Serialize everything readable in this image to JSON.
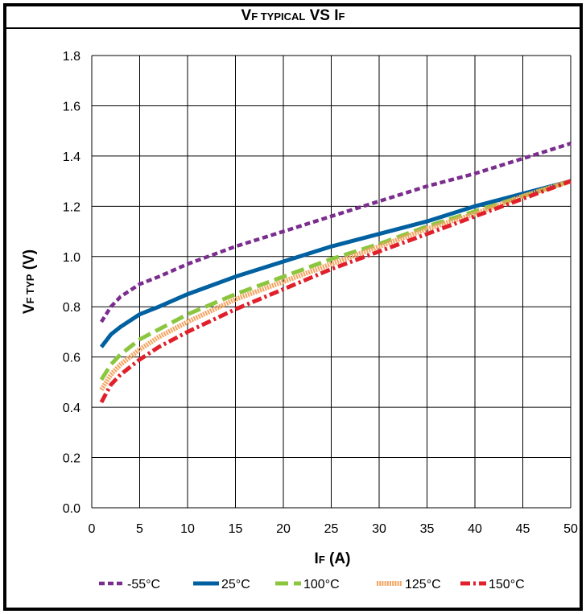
{
  "title": {
    "main_v": "V",
    "main_f": "F TYPICAL",
    "vs": " VS ",
    "main_i": "I",
    "main_if": "F"
  },
  "axes": {
    "xlabel_main": "I",
    "xlabel_sub": "F",
    "xlabel_unit": " (A)",
    "ylabel_main": "V",
    "ylabel_sub": "F TYP",
    "ylabel_unit": " (V)"
  },
  "chart_data": {
    "type": "line",
    "title": "VF TYPICAL VS IF",
    "xlabel": "IF (A)",
    "ylabel": "VF TYP (V)",
    "xlim": [
      0,
      50
    ],
    "ylim": [
      0,
      1.8
    ],
    "xticks": [
      "0",
      "5",
      "10",
      "15",
      "20",
      "25",
      "30",
      "35",
      "40",
      "45",
      "50"
    ],
    "yticks": [
      "0.0",
      "0.2",
      "0.4",
      "0.6",
      "0.8",
      "1.0",
      "1.2",
      "1.4",
      "1.6",
      "1.8"
    ],
    "grid": true,
    "legend_position": "bottom",
    "series": [
      {
        "name": "-55°C",
        "color": "#7b2d8e",
        "dash": "short-dash",
        "x": [
          1,
          2,
          3,
          5,
          7,
          10,
          15,
          20,
          25,
          30,
          35,
          40,
          45,
          50
        ],
        "y": [
          0.74,
          0.8,
          0.84,
          0.89,
          0.92,
          0.97,
          1.04,
          1.1,
          1.16,
          1.22,
          1.28,
          1.33,
          1.39,
          1.45
        ]
      },
      {
        "name": "25°C",
        "color": "#0060a0",
        "dash": "solid",
        "x": [
          1,
          2,
          3,
          5,
          7,
          10,
          15,
          20,
          25,
          30,
          35,
          40,
          45,
          50
        ],
        "y": [
          0.64,
          0.69,
          0.72,
          0.77,
          0.8,
          0.85,
          0.92,
          0.98,
          1.04,
          1.09,
          1.14,
          1.2,
          1.25,
          1.3
        ]
      },
      {
        "name": "100°C",
        "color": "#8cc63f",
        "dash": "long-dash",
        "x": [
          1,
          2,
          3,
          5,
          7,
          10,
          15,
          20,
          25,
          30,
          35,
          40,
          45,
          50
        ],
        "y": [
          0.51,
          0.57,
          0.61,
          0.67,
          0.71,
          0.77,
          0.85,
          0.92,
          0.99,
          1.05,
          1.12,
          1.18,
          1.24,
          1.3
        ]
      },
      {
        "name": "125°C",
        "color": "#f4a460",
        "dash": "dotted",
        "x": [
          1,
          2,
          3,
          5,
          7,
          10,
          15,
          20,
          25,
          30,
          35,
          40,
          45,
          50
        ],
        "y": [
          0.47,
          0.53,
          0.57,
          0.63,
          0.68,
          0.74,
          0.83,
          0.9,
          0.97,
          1.04,
          1.11,
          1.17,
          1.24,
          1.3
        ]
      },
      {
        "name": "150°C",
        "color": "#e0202a",
        "dash": "dash-dot",
        "x": [
          1,
          2,
          3,
          5,
          7,
          10,
          15,
          20,
          25,
          30,
          35,
          40,
          45,
          50
        ],
        "y": [
          0.42,
          0.49,
          0.53,
          0.59,
          0.64,
          0.7,
          0.79,
          0.87,
          0.95,
          1.02,
          1.09,
          1.16,
          1.23,
          1.3
        ]
      }
    ]
  }
}
